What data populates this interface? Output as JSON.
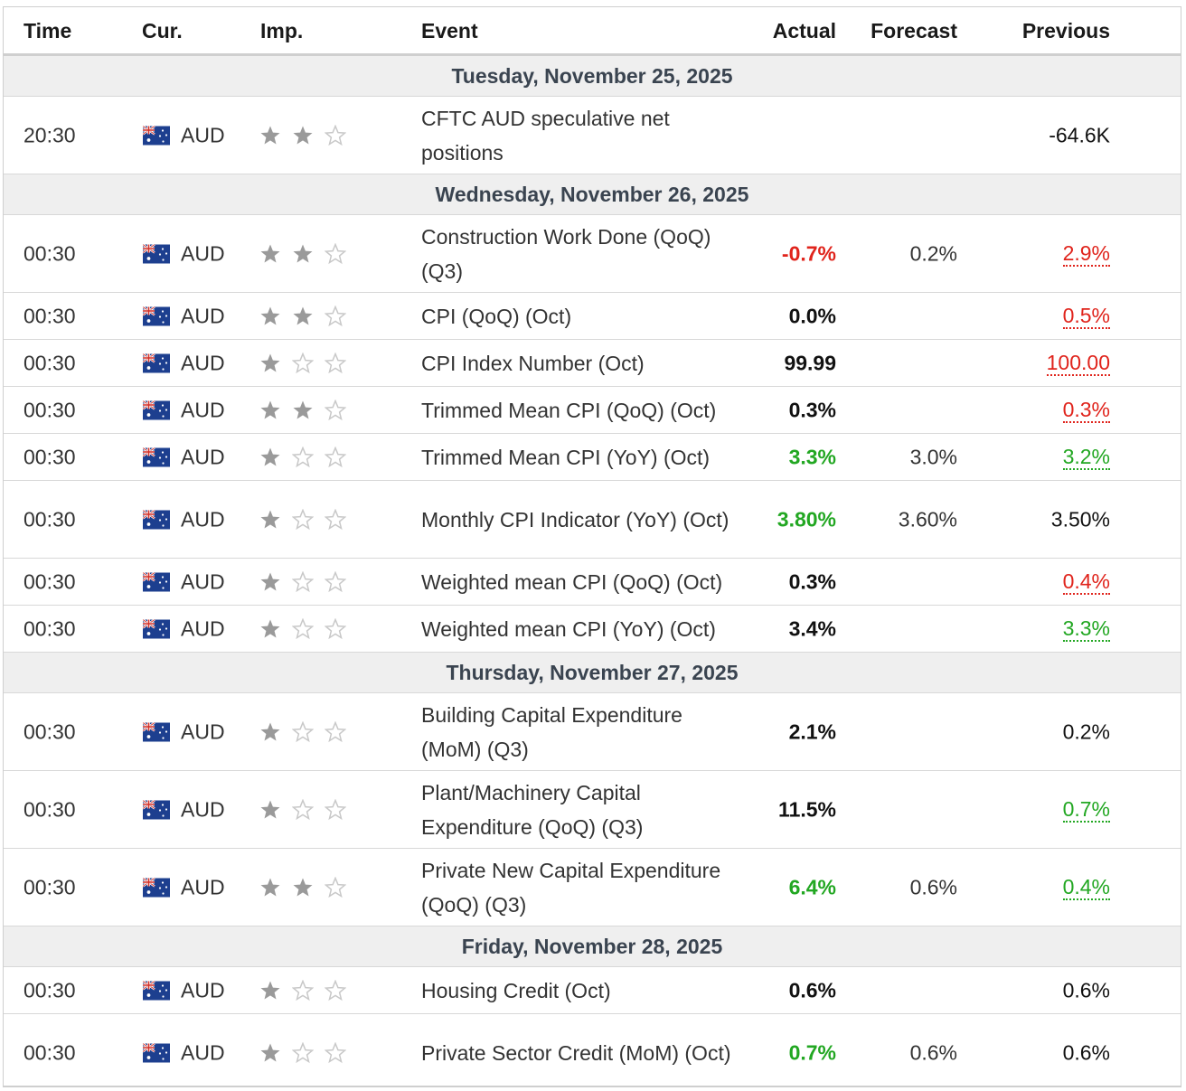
{
  "columns": {
    "time": "Time",
    "cur": "Cur.",
    "imp": "Imp.",
    "event": "Event",
    "actual": "Actual",
    "forecast": "Forecast",
    "previous": "Previous"
  },
  "colors": {
    "positive": "#22a722",
    "negative": "#e0241c",
    "star_filled": "#9a9a9a",
    "star_empty": "#c8c8c8",
    "day_header_bg": "#efefef"
  },
  "days": [
    {
      "label": "Tuesday, November 25, 2025",
      "events": [
        {
          "time": "20:30",
          "currency": "AUD",
          "flag": "australia-flag-icon",
          "importance": 2,
          "name": "CFTC AUD speculative net positions",
          "actual": "",
          "actual_tone": "neutral",
          "forecast": "",
          "previous": "-64.6K",
          "previous_tone": "neutral",
          "previous_dotted": false,
          "tall": true
        }
      ]
    },
    {
      "label": "Wednesday, November 26, 2025",
      "events": [
        {
          "time": "00:30",
          "currency": "AUD",
          "flag": "australia-flag-icon",
          "importance": 2,
          "name": "Construction Work Done (QoQ) (Q3)",
          "actual": "-0.7%",
          "actual_tone": "negative",
          "forecast": "0.2%",
          "previous": "2.9%",
          "previous_tone": "negative",
          "previous_dotted": true,
          "tall": true
        },
        {
          "time": "00:30",
          "currency": "AUD",
          "flag": "australia-flag-icon",
          "importance": 2,
          "name": "CPI (QoQ) (Oct)",
          "actual": "0.0%",
          "actual_tone": "neutral",
          "forecast": "",
          "previous": "0.5%",
          "previous_tone": "negative",
          "previous_dotted": true,
          "tall": false
        },
        {
          "time": "00:30",
          "currency": "AUD",
          "flag": "australia-flag-icon",
          "importance": 1,
          "name": "CPI Index Number (Oct)",
          "actual": "99.99",
          "actual_tone": "neutral",
          "forecast": "",
          "previous": "100.00",
          "previous_tone": "negative",
          "previous_dotted": true,
          "tall": false
        },
        {
          "time": "00:30",
          "currency": "AUD",
          "flag": "australia-flag-icon",
          "importance": 2,
          "name": "Trimmed Mean CPI (QoQ) (Oct)",
          "actual": "0.3%",
          "actual_tone": "neutral",
          "forecast": "",
          "previous": "0.3%",
          "previous_tone": "negative",
          "previous_dotted": true,
          "tall": false
        },
        {
          "time": "00:30",
          "currency": "AUD",
          "flag": "australia-flag-icon",
          "importance": 1,
          "name": "Trimmed Mean CPI (YoY) (Oct)",
          "actual": "3.3%",
          "actual_tone": "positive",
          "forecast": "3.0%",
          "previous": "3.2%",
          "previous_tone": "positive",
          "previous_dotted": true,
          "tall": false
        },
        {
          "time": "00:30",
          "currency": "AUD",
          "flag": "australia-flag-icon",
          "importance": 1,
          "name": "Monthly CPI Indicator (YoY) (Oct)",
          "actual": "3.80%",
          "actual_tone": "positive",
          "forecast": "3.60%",
          "previous": "3.50%",
          "previous_tone": "neutral",
          "previous_dotted": false,
          "tall": true
        },
        {
          "time": "00:30",
          "currency": "AUD",
          "flag": "australia-flag-icon",
          "importance": 1,
          "name": "Weighted mean CPI (QoQ) (Oct)",
          "actual": "0.3%",
          "actual_tone": "neutral",
          "forecast": "",
          "previous": "0.4%",
          "previous_tone": "negative",
          "previous_dotted": true,
          "tall": false
        },
        {
          "time": "00:30",
          "currency": "AUD",
          "flag": "australia-flag-icon",
          "importance": 1,
          "name": "Weighted mean CPI (YoY) (Oct)",
          "actual": "3.4%",
          "actual_tone": "neutral",
          "forecast": "",
          "previous": "3.3%",
          "previous_tone": "positive",
          "previous_dotted": true,
          "tall": false
        }
      ]
    },
    {
      "label": "Thursday, November 27, 2025",
      "events": [
        {
          "time": "00:30",
          "currency": "AUD",
          "flag": "australia-flag-icon",
          "importance": 1,
          "name": "Building Capital Expenditure (MoM) (Q3)",
          "actual": "2.1%",
          "actual_tone": "neutral",
          "forecast": "",
          "previous": "0.2%",
          "previous_tone": "neutral",
          "previous_dotted": false,
          "tall": true
        },
        {
          "time": "00:30",
          "currency": "AUD",
          "flag": "australia-flag-icon",
          "importance": 1,
          "name": "Plant/Machinery Capital Expenditure (QoQ) (Q3)",
          "actual": "11.5%",
          "actual_tone": "neutral",
          "forecast": "",
          "previous": "0.7%",
          "previous_tone": "positive",
          "previous_dotted": true,
          "tall": true
        },
        {
          "time": "00:30",
          "currency": "AUD",
          "flag": "australia-flag-icon",
          "importance": 2,
          "name": "Private New Capital Expenditure (QoQ) (Q3)",
          "actual": "6.4%",
          "actual_tone": "positive",
          "forecast": "0.6%",
          "previous": "0.4%",
          "previous_tone": "positive",
          "previous_dotted": true,
          "tall": true
        }
      ]
    },
    {
      "label": "Friday, November 28, 2025",
      "events": [
        {
          "time": "00:30",
          "currency": "AUD",
          "flag": "australia-flag-icon",
          "importance": 1,
          "name": "Housing Credit (Oct)",
          "actual": "0.6%",
          "actual_tone": "neutral",
          "forecast": "",
          "previous": "0.6%",
          "previous_tone": "neutral",
          "previous_dotted": false,
          "tall": false
        },
        {
          "time": "00:30",
          "currency": "AUD",
          "flag": "australia-flag-icon",
          "importance": 1,
          "name": "Private Sector Credit (MoM) (Oct)",
          "actual": "0.7%",
          "actual_tone": "positive",
          "forecast": "0.6%",
          "previous": "0.6%",
          "previous_tone": "neutral",
          "previous_dotted": false,
          "tall": true
        }
      ]
    }
  ]
}
